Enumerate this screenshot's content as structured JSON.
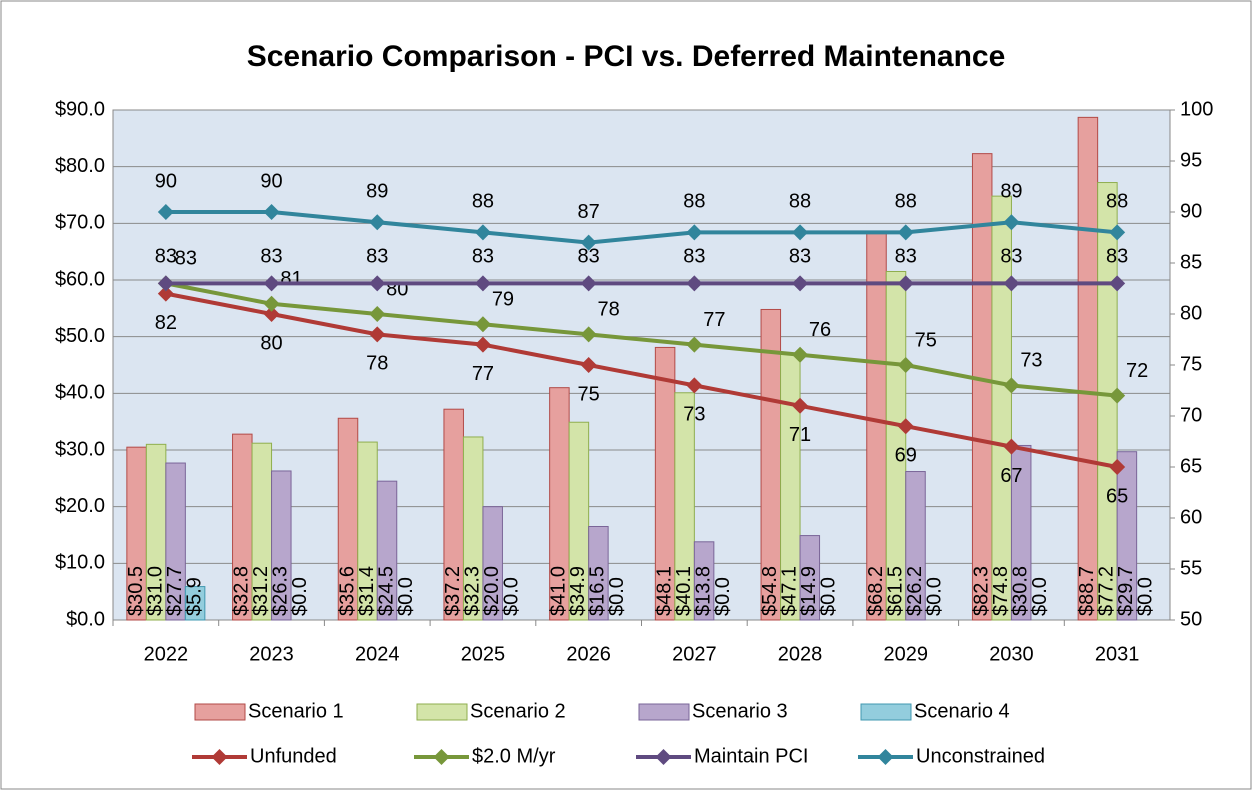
{
  "chart_data": {
    "type": "bar",
    "title": "Scenario Comparison - PCI vs. Deferred Maintenance",
    "categories": [
      "2022",
      "2023",
      "2024",
      "2025",
      "2026",
      "2027",
      "2028",
      "2029",
      "2030",
      "2031"
    ],
    "ylim": [
      0,
      90
    ],
    "yticks": [
      {
        "value": 0,
        "label": "$0.0"
      },
      {
        "value": 10,
        "label": "$10.0"
      },
      {
        "value": 20,
        "label": "$20.0"
      },
      {
        "value": 30,
        "label": "$30.0"
      },
      {
        "value": 40,
        "label": "$40.0"
      },
      {
        "value": 50,
        "label": "$50.0"
      },
      {
        "value": 60,
        "label": "$60.0"
      },
      {
        "value": 70,
        "label": "$70.0"
      },
      {
        "value": 80,
        "label": "$80.0"
      },
      {
        "value": 90,
        "label": "$90.0"
      }
    ],
    "y2lim": [
      50,
      100
    ],
    "y2ticks": [
      50,
      55,
      60,
      65,
      70,
      75,
      80,
      85,
      90,
      95,
      100
    ],
    "grid": true,
    "series": [
      {
        "name": "Scenario 1",
        "type": "bar",
        "color": "#e6a09e",
        "stroke": "#b24a47",
        "values": [
          30.5,
          32.8,
          35.6,
          37.2,
          41.0,
          48.1,
          54.8,
          68.2,
          82.3,
          88.7
        ],
        "value_labels": [
          "$30.5",
          "$32.8",
          "$35.6",
          "$37.2",
          "$41.0",
          "$48.1",
          "$54.8",
          "$68.2",
          "$82.3",
          "$88.7"
        ]
      },
      {
        "name": "Scenario 2",
        "type": "bar",
        "color": "#d3e4a9",
        "stroke": "#8fae4e",
        "values": [
          31.0,
          31.2,
          31.4,
          32.3,
          34.9,
          40.1,
          47.1,
          61.5,
          74.8,
          77.2
        ],
        "value_labels": [
          "$31.0",
          "$31.2",
          "$31.4",
          "$32.3",
          "$34.9",
          "$40.1",
          "$47.1",
          "$61.5",
          "$74.8",
          "$77.2"
        ]
      },
      {
        "name": "Scenario 3",
        "type": "bar",
        "color": "#b7a6cc",
        "stroke": "#7a6598",
        "values": [
          27.7,
          26.3,
          24.5,
          20.0,
          16.5,
          13.8,
          14.9,
          26.2,
          30.8,
          29.7
        ],
        "value_labels": [
          "$27.7",
          "$26.3",
          "$24.5",
          "$20.0",
          "$16.5",
          "$13.8",
          "$14.9",
          "$26.2",
          "$30.8",
          "$29.7"
        ]
      },
      {
        "name": "Scenario 4",
        "type": "bar",
        "color": "#93cddd",
        "stroke": "#4198b0",
        "values": [
          5.9,
          0,
          0,
          0,
          0,
          0,
          0,
          0,
          0,
          0
        ],
        "value_labels": [
          "$5.9",
          "$0.0",
          "$0.0",
          "$0.0",
          "$0.0",
          "$0.0",
          "$0.0",
          "$0.0",
          "$0.0",
          "$0.0"
        ]
      },
      {
        "name": "Unfunded",
        "type": "line",
        "axis": "y2",
        "color": "#b03a36",
        "values": [
          82,
          80,
          78,
          77,
          75,
          73,
          71,
          69,
          67,
          65
        ]
      },
      {
        "name": "$2.0 M/yr",
        "type": "line",
        "axis": "y2",
        "color": "#77973a",
        "values": [
          83,
          81,
          80,
          79,
          78,
          77,
          76,
          75,
          73,
          72
        ]
      },
      {
        "name": "Maintain PCI",
        "type": "line",
        "axis": "y2",
        "color": "#5f4a80",
        "values": [
          83,
          83,
          83,
          83,
          83,
          83,
          83,
          83,
          83,
          83
        ]
      },
      {
        "name": "Unconstrained",
        "type": "line",
        "axis": "y2",
        "color": "#31859c",
        "values": [
          90,
          90,
          89,
          88,
          87,
          88,
          88,
          88,
          89,
          88
        ]
      }
    ]
  }
}
